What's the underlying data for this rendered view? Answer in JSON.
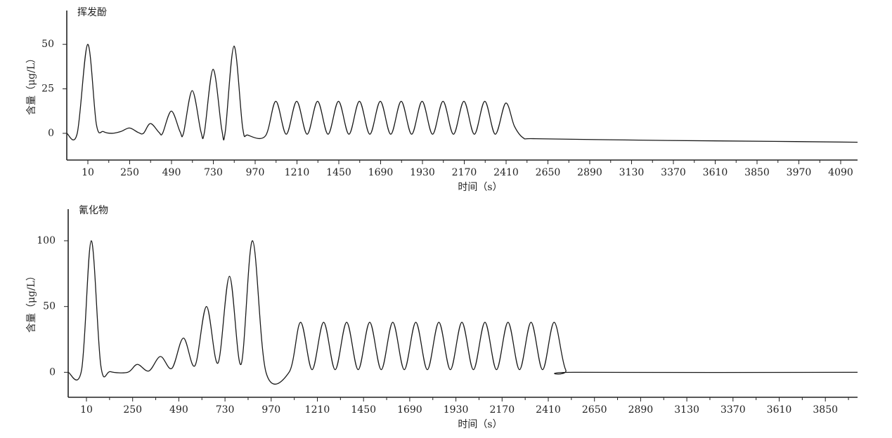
{
  "chart_data": [
    {
      "type": "line",
      "title": "挥发酚",
      "x_label": "时间（s）",
      "y_label": "含量（μg/L）",
      "categories": [
        "10",
        "250",
        "490",
        "730",
        "970",
        "1210",
        "1450",
        "1690",
        "1930",
        "2170",
        "2410",
        "2650",
        "2890",
        "3130",
        "3370",
        "3610",
        "3850",
        "3970",
        "4090"
      ],
      "xlim": [
        -110,
        4430
      ],
      "ylim": [
        -15,
        69
      ],
      "yticks": [
        0,
        25,
        50
      ],
      "color": "#1a1a1a",
      "x": [
        -110,
        -50,
        10,
        60,
        100,
        150,
        200,
        250,
        300,
        330,
        370,
        420,
        440,
        490,
        540,
        560,
        610,
        660,
        680,
        730,
        780,
        800,
        850,
        900,
        930,
        1030,
        1090,
        1150,
        1210,
        1270,
        1330,
        1390,
        1450,
        1510,
        1570,
        1630,
        1690,
        1750,
        1810,
        1870,
        1930,
        1990,
        2050,
        2110,
        2170,
        2230,
        2290,
        2350,
        2410,
        2460,
        2510,
        2570,
        2930,
        3340,
        3940,
        4430
      ],
      "values": [
        0,
        0,
        50,
        5,
        1,
        0,
        1,
        3,
        0.5,
        0,
        5.5,
        0.5,
        0,
        12.5,
        1,
        0,
        24,
        1,
        0.5,
        36,
        2,
        1,
        49,
        3,
        -1,
        -1.5,
        18,
        -0.5,
        18,
        -0.5,
        18,
        -0.5,
        18,
        -0.5,
        18,
        -0.5,
        18,
        -0.5,
        18,
        -0.5,
        18,
        -0.5,
        18,
        -0.5,
        18,
        -0.5,
        18,
        -0.5,
        17,
        4,
        -2.5,
        -3,
        -3.5,
        -4,
        -4.5,
        -5
      ]
    },
    {
      "type": "line",
      "title": "氰化物",
      "x_label": "时间（s）",
      "y_label": "含量（μg/L）",
      "categories": [
        "10",
        "250",
        "490",
        "730",
        "970",
        "1210",
        "1450",
        "1690",
        "1930",
        "2170",
        "2410",
        "2650",
        "2890",
        "3130",
        "3370",
        "3610",
        "3850"
      ],
      "xlim": [
        -90,
        4020
      ],
      "ylim": [
        -19,
        124
      ],
      "yticks": [
        0,
        50,
        100
      ],
      "color": "#1a1a1a",
      "x": [
        -90,
        -20,
        30,
        80,
        130,
        220,
        270,
        330,
        390,
        450,
        510,
        570,
        630,
        690,
        750,
        810,
        870,
        940,
        1060,
        1120,
        1180,
        1240,
        1300,
        1360,
        1420,
        1480,
        1540,
        1600,
        1660,
        1720,
        1780,
        1840,
        1900,
        1960,
        2020,
        2080,
        2140,
        2200,
        2260,
        2320,
        2380,
        2440,
        2500,
        2570,
        4020
      ],
      "values": [
        0,
        2,
        100,
        5,
        0.5,
        0,
        6,
        1,
        12,
        3,
        26,
        5,
        50,
        7,
        73,
        6,
        100,
        0,
        0,
        38,
        2,
        38,
        2,
        38,
        2,
        38,
        2,
        38,
        2,
        38,
        2,
        38,
        2,
        38,
        2,
        38,
        2,
        38,
        2,
        38,
        2,
        38,
        2,
        0,
        0
      ]
    }
  ]
}
